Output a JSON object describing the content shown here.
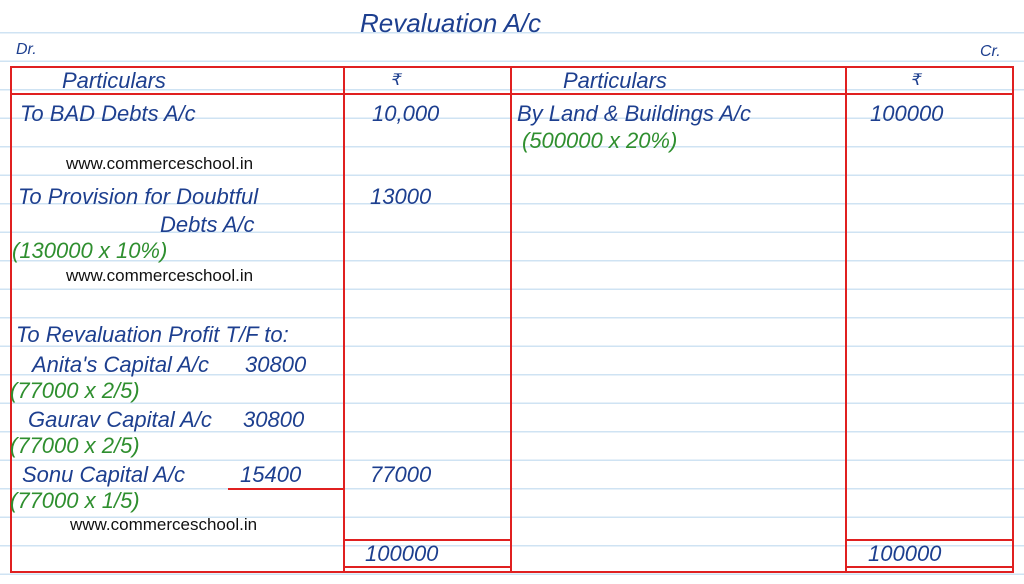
{
  "title": "Revaluation A/c",
  "dr_label": "Dr.",
  "cr_label": "Cr.",
  "headers": {
    "particulars_left": "Particulars",
    "amount_left": "₹",
    "particulars_right": "Particulars",
    "amount_right": "₹"
  },
  "debit": {
    "bad_debts": {
      "label": "To BAD Debts A/c",
      "amount": "10,000"
    },
    "provision": {
      "label_line1": "To Provision for Doubtful",
      "label_line2": "Debts A/c",
      "calc": "(130000 x 10%)",
      "amount": "13000"
    },
    "profit": {
      "label": "To Revaluation Profit T/F to:",
      "partners": [
        {
          "label": "Anita's Capital A/c",
          "amount": "30800",
          "calc": "(77000 x 2/5)"
        },
        {
          "label": "Gaurav Capital A/c",
          "amount": "30800",
          "calc": "(77000 x 2/5)"
        },
        {
          "label": "Sonu Capital A/c",
          "amount": "15400",
          "calc": "(77000 x 1/5)"
        }
      ],
      "total": "77000"
    },
    "grand_total": "100000"
  },
  "credit": {
    "land": {
      "label": "By Land & Buildings A/c",
      "calc": "(500000 x 20%)",
      "amount": "100000"
    },
    "grand_total": "100000"
  },
  "watermarks": [
    "www.commerceschool.in",
    "www.commerceschool.in",
    "www.commerceschool.in"
  ],
  "colors": {
    "ink_blue": "#1d3f8f",
    "ink_green": "#2f8f2f",
    "rule_red": "#e02020",
    "ruled_line": "#cfe3f3"
  }
}
